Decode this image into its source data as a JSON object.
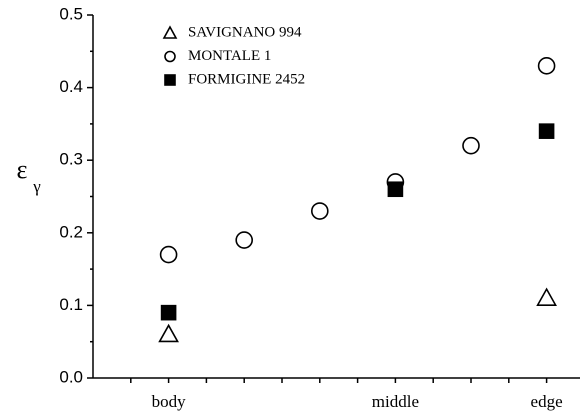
{
  "chart_data": {
    "type": "scatter",
    "y_label": "ε",
    "y_label_subscript": "γ",
    "categories": [
      "body",
      null,
      null,
      "middle",
      null,
      "edge"
    ],
    "ylim": [
      0,
      0.5
    ],
    "yticks": [
      {
        "value": 0,
        "label": "0.0"
      },
      0.1,
      0.2,
      0.3,
      0.4,
      0.5
    ],
    "series": [
      {
        "name": "SAVIGNANO 994",
        "color": "#000000",
        "marker": "triangle",
        "filled": false,
        "values": [
          0.06,
          null,
          null,
          null,
          null,
          0.11
        ]
      },
      {
        "name": "MONTALE 1",
        "color": "#000000",
        "marker": "circle",
        "filled": false,
        "values": [
          0.17,
          0.19,
          0.23,
          0.27,
          0.32,
          0.43
        ]
      },
      {
        "name": "FORMIGINE 2452",
        "color": "#000000",
        "marker": "square",
        "filled": true,
        "values": [
          0.09,
          null,
          null,
          0.26,
          null,
          0.34
        ]
      }
    ]
  }
}
